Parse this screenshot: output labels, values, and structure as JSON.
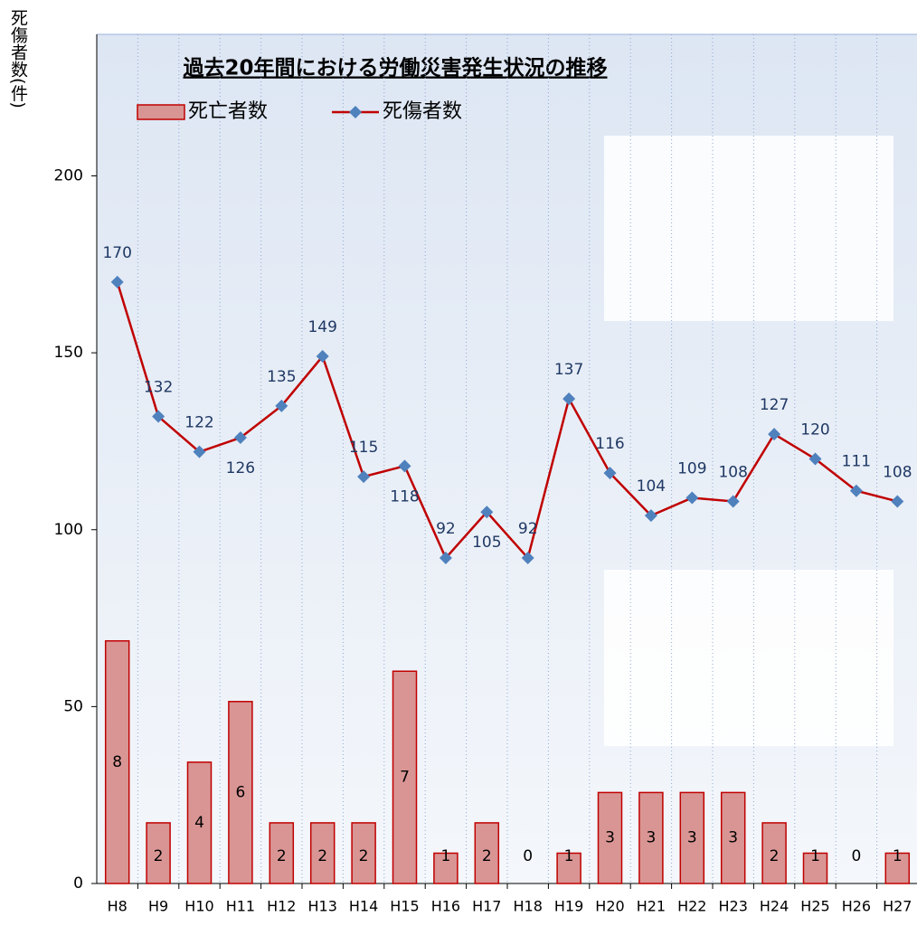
{
  "chart_data": {
    "type": "bar-line",
    "title": "過去20年間における労働災害発生状況の推移",
    "y_label": "死傷者数(件)",
    "categories": [
      "H8",
      "H9",
      "H10",
      "H11",
      "H12",
      "H13",
      "H14",
      "H15",
      "H16",
      "H17",
      "H18",
      "H19",
      "H20",
      "H21",
      "H22",
      "H23",
      "H24",
      "H25",
      "H26",
      "H27"
    ],
    "series": [
      {
        "name": "死亡者数",
        "type": "bar",
        "axis": "y2",
        "color": "#d99594",
        "values": [
          8,
          2,
          4,
          6,
          2,
          2,
          2,
          7,
          1,
          2,
          0,
          1,
          3,
          3,
          3,
          3,
          2,
          1,
          0,
          1
        ]
      },
      {
        "name": "死傷者数",
        "type": "line",
        "color": "#c00000",
        "marker_color": "#4f81bd",
        "values": [
          170,
          132,
          122,
          126,
          135,
          149,
          115,
          118,
          92,
          105,
          92,
          137,
          116,
          104,
          109,
          108,
          127,
          120,
          111,
          108
        ]
      }
    ],
    "ylim": [
      0,
      240
    ],
    "yticks": [
      0,
      50,
      100,
      150,
      200
    ],
    "y2lim": [
      0,
      28
    ],
    "grid": true
  }
}
